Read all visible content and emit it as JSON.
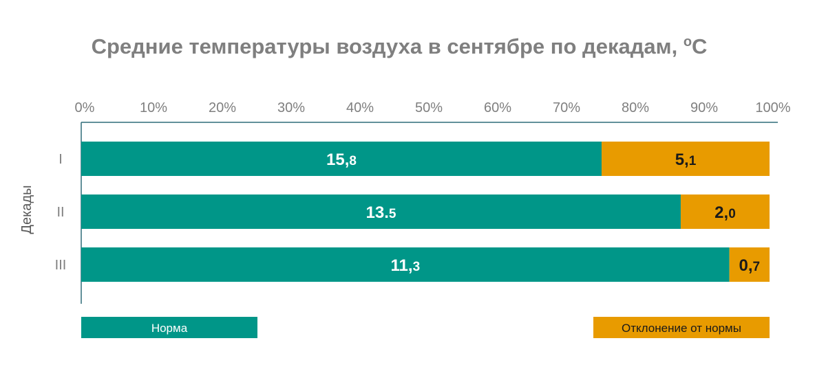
{
  "chart_data": {
    "type": "bar",
    "orientation": "horizontal",
    "stacking": "percent",
    "title": "Средние температуры воздуха в сентябре по декадам, ",
    "title_sup": "o",
    "title_end": "C",
    "ylabel": "Декады",
    "categories": [
      "I",
      "II",
      "III"
    ],
    "x_tick_labels": [
      "0%",
      "10%",
      "20%",
      "30%",
      "40%",
      "50%",
      "60%",
      "70%",
      "80%",
      "90%",
      "100%"
    ],
    "xlim": [
      0,
      100
    ],
    "grid": false,
    "legend_position": "bottom",
    "series": [
      {
        "name": "Норма",
        "color": "#009688",
        "label_color": "#ffffff",
        "values": [
          15.8,
          13.5,
          11.3
        ],
        "labels": [
          {
            "main": "15,",
            "small": "8"
          },
          {
            "main": "13.",
            "small": "5"
          },
          {
            "main": "11,",
            "small": "3"
          }
        ]
      },
      {
        "name": "Отклонение от нормы",
        "color": "#e89b00",
        "label_color": "#1a1a1a",
        "values": [
          5.1,
          2.0,
          0.7
        ],
        "labels": [
          {
            "main": "5,",
            "small": "1"
          },
          {
            "main": "2,",
            "small": "0"
          },
          {
            "main": "0,",
            "small": "7"
          }
        ]
      }
    ]
  }
}
